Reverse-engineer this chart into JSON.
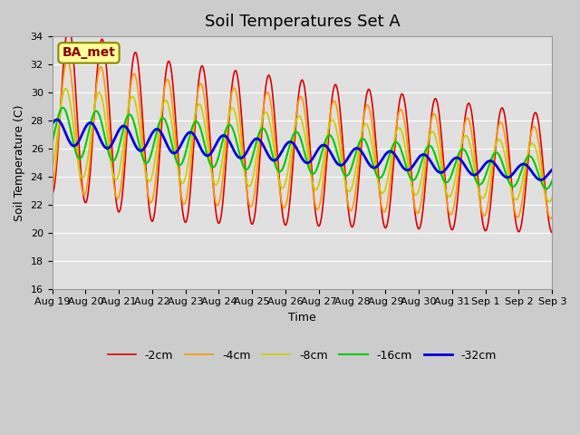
{
  "title": "Soil Temperatures Set A",
  "xlabel": "Time",
  "ylabel": "Soil Temperature (C)",
  "ylim": [
    16,
    34
  ],
  "yticks": [
    16,
    18,
    20,
    22,
    24,
    26,
    28,
    30,
    32,
    34
  ],
  "date_labels": [
    "Aug 19",
    "Aug 20",
    "Aug 21",
    "Aug 22",
    "Aug 23",
    "Aug 24",
    "Aug 25",
    "Aug 26",
    "Aug 27",
    "Aug 28",
    "Aug 29",
    "Aug 30",
    "Aug 31",
    "Sep 1",
    "Sep 2",
    "Sep 3"
  ],
  "legend_labels": [
    "-2cm",
    "-4cm",
    "-8cm",
    "-16cm",
    "-32cm"
  ],
  "line_colors": [
    "#dd0000",
    "#ff9900",
    "#cccc00",
    "#00cc00",
    "#0000dd"
  ],
  "line_widths": [
    1.2,
    1.2,
    1.2,
    1.5,
    2.0
  ],
  "annotation_text": "BA_met",
  "n_days": 15
}
